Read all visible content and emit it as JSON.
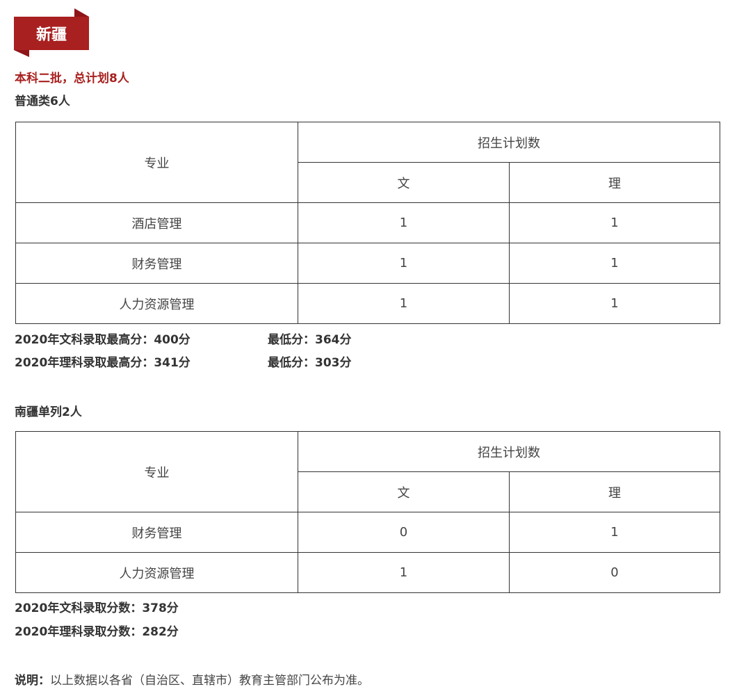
{
  "region": "新疆",
  "batch": "本科二批，总计划8人",
  "section1": {
    "title": "普通类6人",
    "headers": {
      "major": "专业",
      "plan": "招生计划数",
      "arts": "文",
      "science": "理"
    },
    "rows": [
      {
        "major": "酒店管理",
        "arts": "1",
        "science": "1"
      },
      {
        "major": "财务管理",
        "arts": "1",
        "science": "1"
      },
      {
        "major": "人力资源管理",
        "arts": "1",
        "science": "1"
      }
    ],
    "scores": [
      {
        "max": "2020年文科录取最高分：400分",
        "min": "最低分：364分"
      },
      {
        "max": "2020年理科录取最高分：341分",
        "min": "最低分：303分"
      }
    ]
  },
  "section2": {
    "title": "南疆单列2人",
    "headers": {
      "major": "专业",
      "plan": "招生计划数",
      "arts": "文",
      "science": "理"
    },
    "rows": [
      {
        "major": "财务管理",
        "arts": "0",
        "science": "1"
      },
      {
        "major": "人力资源管理",
        "arts": "1",
        "science": "0"
      }
    ],
    "scores": [
      "2020年文科录取分数：378分",
      "2020年理科录取分数：282分"
    ]
  },
  "note": {
    "label": "说明：",
    "text": "以上数据以各省（自治区、直辖市）教育主管部门公布为准。"
  },
  "colors": {
    "accent": "#a8201f"
  }
}
